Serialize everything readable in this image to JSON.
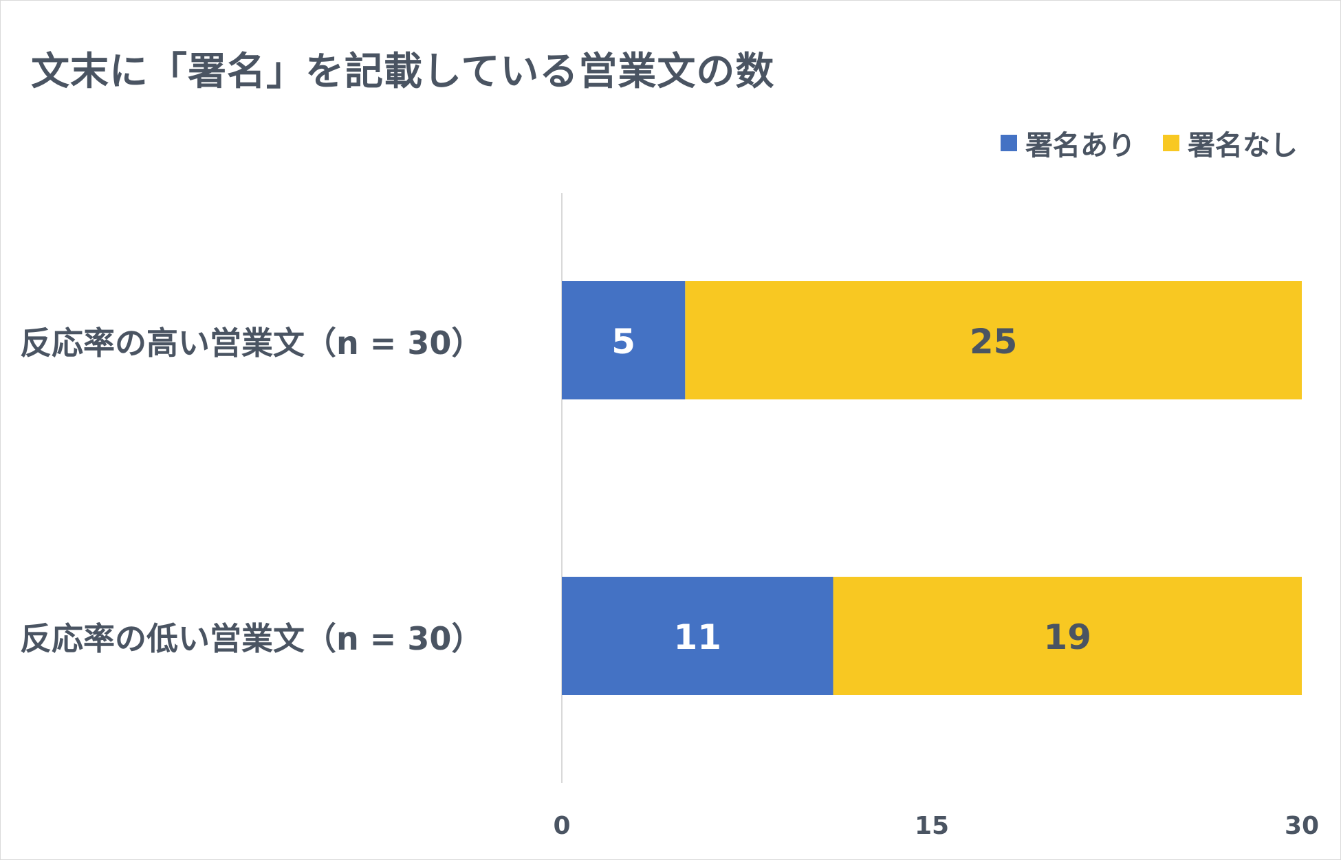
{
  "chart_data": {
    "type": "bar",
    "orientation": "horizontal",
    "stacked": true,
    "title": "文末に「署名」を記載している営業文の数",
    "categories": [
      "反応率の高い営業文（n = 30）",
      "反応率の低い営業文（n = 30）"
    ],
    "series": [
      {
        "name": "署名あり",
        "values": [
          5,
          11
        ],
        "color": "#4472c4",
        "label_color": "#ffffff"
      },
      {
        "name": "署名なし",
        "values": [
          25,
          19
        ],
        "color": "#f8c822",
        "label_color": "#4a5462"
      }
    ],
    "xlim": [
      0,
      30
    ],
    "xticks": [
      0,
      15,
      30
    ],
    "xlabel": "",
    "ylabel": "",
    "legend": "top-right",
    "grid": false,
    "data_labels": true
  }
}
